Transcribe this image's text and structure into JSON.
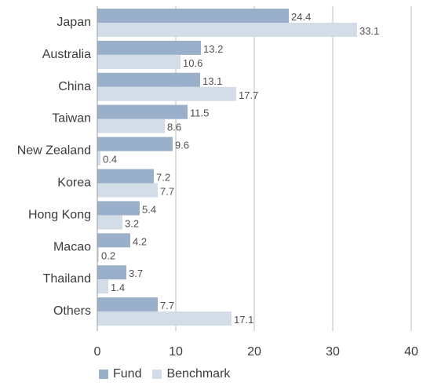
{
  "chart_data": {
    "type": "bar",
    "orientation": "horizontal",
    "categories": [
      "Japan",
      "Australia",
      "China",
      "Taiwan",
      "New Zealand",
      "Korea",
      "Hong Kong",
      "Macao",
      "Thailand",
      "Others"
    ],
    "series": [
      {
        "name": "Fund",
        "color": "#9aafc9",
        "values": [
          24.4,
          13.2,
          13.1,
          11.5,
          9.6,
          7.2,
          5.4,
          4.2,
          3.7,
          7.7
        ]
      },
      {
        "name": "Benchmark",
        "color": "#d3dde8",
        "values": [
          33.1,
          10.6,
          17.7,
          8.6,
          0.4,
          7.7,
          3.2,
          0.2,
          1.4,
          17.1
        ]
      }
    ],
    "xlim": [
      0,
      40
    ],
    "xticks": [
      0,
      10,
      20,
      30,
      40
    ],
    "grid": "vertical",
    "legend_position": "bottom-left",
    "data_labels": true
  }
}
